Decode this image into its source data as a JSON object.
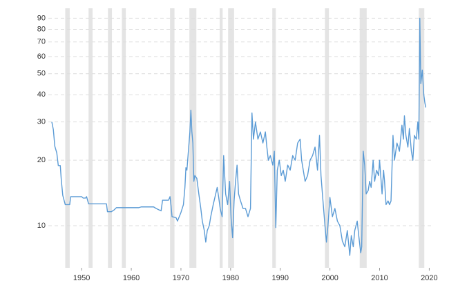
{
  "chart_data": {
    "type": "line",
    "log_scale": true,
    "grid": true,
    "xlim": [
      1943.3,
      2020.5
    ],
    "ylim": [
      6.4,
      100
    ],
    "xticks": [
      1950,
      1960,
      1970,
      1980,
      1990,
      2000,
      2010,
      2020
    ],
    "yticks": [
      10,
      20,
      30,
      40,
      50,
      60,
      70,
      80,
      90
    ],
    "shaded_ranges": [
      [
        1946.7,
        1947.6
      ],
      [
        1951.4,
        1952.2
      ],
      [
        1955.3,
        1956.1
      ],
      [
        1958.1,
        1958.9
      ],
      [
        1967.8,
        1968.7
      ],
      [
        1971.7,
        1973.1
      ],
      [
        1977.8,
        1978.4
      ],
      [
        1979.5,
        1980.7
      ],
      [
        1988.4,
        1989.1
      ],
      [
        1999.0,
        1999.8
      ],
      [
        2006.0,
        2007.4
      ],
      [
        2017.9,
        2019.0
      ]
    ],
    "shade_color": "#e4e4e4",
    "color": "#5b9bd5",
    "x": [
      1944.0,
      1944.3,
      1944.6,
      1945.0,
      1945.3,
      1945.7,
      1945.9,
      1946.2,
      1946.7,
      1947.6,
      1947.8,
      1950.0,
      1950.3,
      1950.8,
      1951.0,
      1951.4,
      1955.0,
      1955.2,
      1956.0,
      1956.5,
      1957.0,
      1961.5,
      1962.0,
      1964.5,
      1965.0,
      1966.0,
      1966.3,
      1967.5,
      1967.8,
      1968.0,
      1968.2,
      1969.0,
      1969.3,
      1970.0,
      1970.5,
      1970.8,
      1971.0,
      1971.2,
      1971.5,
      1971.8,
      1972.0,
      1972.2,
      1972.4,
      1972.6,
      1972.8,
      1973.2,
      1973.6,
      1974.0,
      1974.3,
      1974.7,
      1975.0,
      1975.3,
      1975.7,
      1976.0,
      1976.5,
      1977.0,
      1977.3,
      1977.6,
      1977.9,
      1978.3,
      1978.6,
      1979.0,
      1979.4,
      1979.8,
      1980.1,
      1980.4,
      1980.7,
      1981.0,
      1981.3,
      1981.6,
      1982.0,
      1982.5,
      1983.0,
      1983.5,
      1984.0,
      1984.3,
      1984.6,
      1985.0,
      1985.5,
      1986.0,
      1986.5,
      1987.0,
      1987.3,
      1987.6,
      1988.0,
      1988.5,
      1988.8,
      1989.1,
      1989.4,
      1989.8,
      1990.2,
      1990.6,
      1991.0,
      1991.5,
      1992.0,
      1992.5,
      1993.0,
      1993.5,
      1994.0,
      1994.3,
      1995.0,
      1995.5,
      1996.0,
      1996.5,
      1997.0,
      1997.5,
      1997.9,
      1998.2,
      1998.6,
      1999.0,
      1999.3,
      1999.6,
      2000.0,
      2000.5,
      2001.0,
      2001.5,
      2002.0,
      2002.5,
      2003.0,
      2003.5,
      2004.0,
      2004.3,
      2004.7,
      2005.0,
      2005.5,
      2005.8,
      2006.2,
      2006.4,
      2006.7,
      2007.0,
      2007.3,
      2007.7,
      2008.0,
      2008.3,
      2008.7,
      2009.0,
      2009.4,
      2009.8,
      2010.0,
      2010.5,
      2010.8,
      2011.0,
      2011.3,
      2011.7,
      2012.0,
      2012.3,
      2012.7,
      2013.0,
      2013.5,
      2014.0,
      2014.5,
      2014.8,
      2015.0,
      2015.3,
      2015.7,
      2016.0,
      2016.4,
      2016.7,
      2017.0,
      2017.4,
      2017.7,
      2017.9,
      2018.1,
      2018.3,
      2018.6,
      2018.9,
      2019.1,
      2019.3
    ],
    "values": [
      30,
      27.7,
      23.2,
      21.6,
      18.9,
      18.9,
      16.3,
      13.8,
      12.5,
      12.5,
      13.6,
      13.6,
      13.4,
      13.4,
      13.6,
      12.6,
      12.6,
      11.6,
      11.6,
      11.8,
      12.1,
      12.1,
      12.2,
      12.2,
      12.0,
      11.7,
      13.1,
      13.1,
      13.6,
      12.4,
      11.0,
      10.9,
      10.5,
      11.5,
      12.5,
      15,
      18.5,
      18,
      22,
      27,
      34,
      27,
      24,
      16,
      17,
      16.5,
      14,
      12,
      10.5,
      9.5,
      8.4,
      9.5,
      10,
      11,
      12.5,
      14,
      15,
      13.5,
      12,
      11,
      21,
      14,
      12.5,
      16,
      10.8,
      8.8,
      13,
      16,
      19,
      14,
      13,
      12,
      12,
      11,
      12,
      33,
      25,
      30,
      25,
      27,
      24,
      27,
      23,
      20,
      21,
      19,
      22,
      9.8,
      18,
      20,
      17,
      18,
      16,
      19,
      18,
      21,
      20,
      24,
      25,
      20,
      16,
      17,
      20,
      21,
      23,
      18,
      26,
      17,
      13,
      10,
      8.4,
      10,
      13.5,
      11,
      12,
      10.5,
      10,
      8.5,
      8.0,
      9.5,
      7.3,
      9,
      8,
      9.5,
      10.5,
      9,
      7.5,
      8,
      22,
      19,
      14,
      14.5,
      16,
      15,
      20,
      16,
      18,
      17,
      20,
      14,
      18,
      16,
      12.5,
      13,
      12.5,
      13,
      26,
      20,
      24,
      22,
      29,
      25,
      32,
      26,
      23,
      28,
      22,
      20,
      26,
      25,
      30,
      25,
      90,
      45,
      52,
      40,
      37,
      35
    ]
  }
}
